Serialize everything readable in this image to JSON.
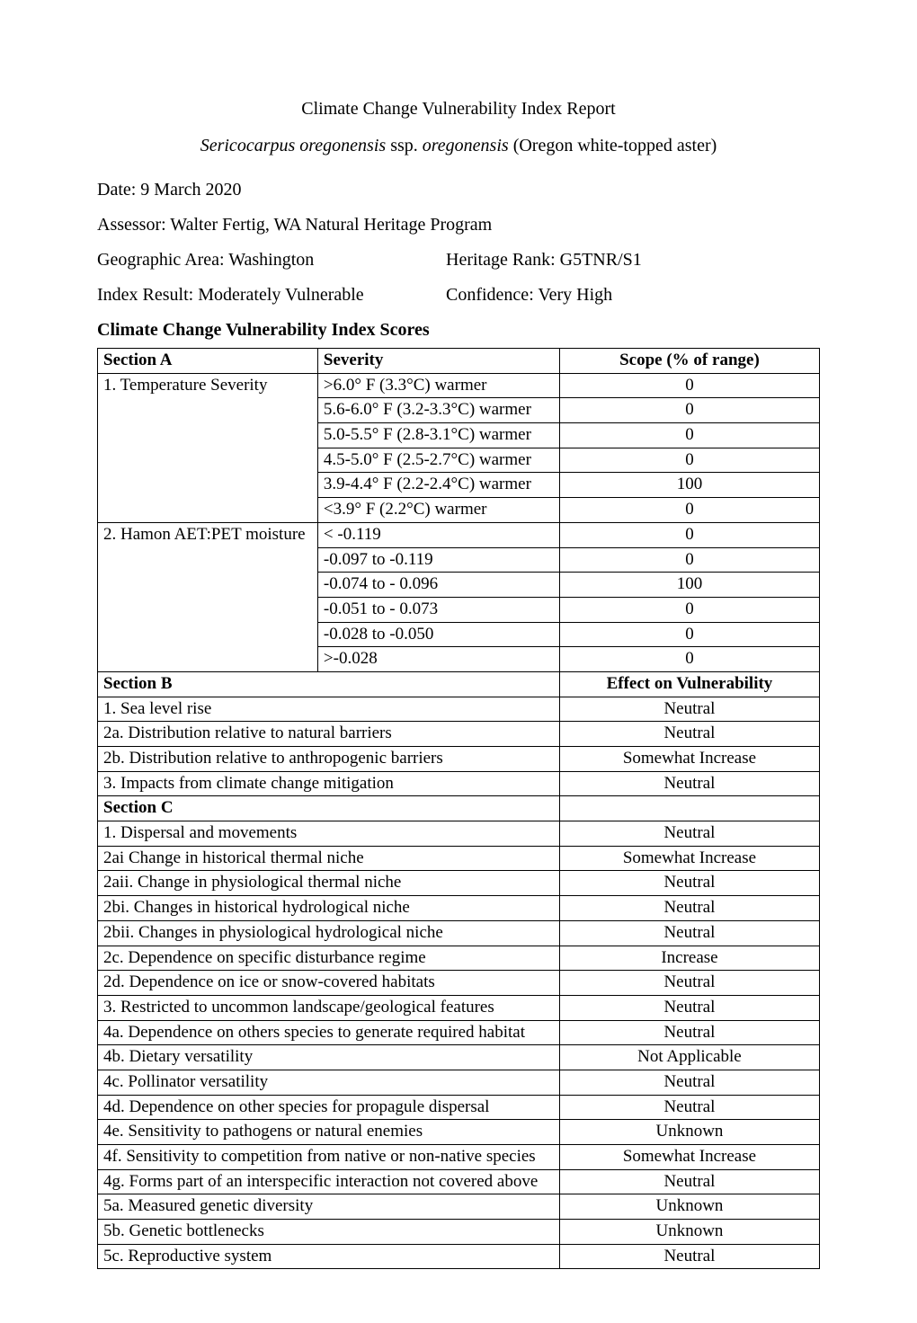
{
  "title": "Climate Change Vulnerability Index Report",
  "species_italic": "Sericocarpus oregonensis",
  "ssp_label": " ssp. ",
  "ssp_italic": "oregonensis",
  "common_name": " (Oregon white-topped aster)",
  "date": "Date: 9 March 2020",
  "assessor": "Assessor: Walter Fertig, WA Natural Heritage Program",
  "geo_area": "Geographic Area:  Washington",
  "heritage_rank": "Heritage Rank: G5TNR/S1",
  "index_result": "Index Result:  Moderately Vulnerable",
  "confidence": "Confidence: Very High",
  "scores_heading": "Climate Change Vulnerability Index Scores",
  "section_a": {
    "header": {
      "c1": "Section A",
      "c2": "Severity",
      "c3": "Scope (% of range)"
    },
    "rows": [
      {
        "factor": "1. Temperature Severity",
        "severity": ">6.0° F (3.3°C) warmer",
        "scope": "0",
        "first": true,
        "span": 6
      },
      {
        "factor": "",
        "severity": "5.6-6.0° F (3.2-3.3°C) warmer",
        "scope": "0"
      },
      {
        "factor": "",
        "severity": "5.0-5.5° F (2.8-3.1°C) warmer",
        "scope": "0"
      },
      {
        "factor": "",
        "severity": "4.5-5.0° F (2.5-2.7°C) warmer",
        "scope": "0"
      },
      {
        "factor": "",
        "severity": "3.9-4.4° F (2.2-2.4°C) warmer",
        "scope": "100"
      },
      {
        "factor": "",
        "severity": "<3.9° F (2.2°C) warmer",
        "scope": "0"
      },
      {
        "factor": "2. Hamon AET:PET moisture",
        "severity": "< -0.119",
        "scope": "0",
        "first": true,
        "span": 6
      },
      {
        "factor": "",
        "severity": "-0.097 to -0.119",
        "scope": "0"
      },
      {
        "factor": "",
        "severity": "-0.074 to - 0.096",
        "scope": "100"
      },
      {
        "factor": "",
        "severity": "-0.051 to - 0.073",
        "scope": "0"
      },
      {
        "factor": "",
        "severity": "-0.028 to -0.050",
        "scope": "0"
      },
      {
        "factor": "",
        "severity": ">-0.028",
        "scope": "0"
      }
    ]
  },
  "section_b": {
    "header": {
      "c1": "Section B",
      "c2": "Effect on Vulnerability"
    },
    "rows": [
      {
        "factor": "1.  Sea level rise",
        "effect": "Neutral"
      },
      {
        "factor": "2a. Distribution relative to natural barriers",
        "effect": "Neutral"
      },
      {
        "factor": "2b. Distribution relative to anthropogenic barriers",
        "effect": "Somewhat Increase"
      },
      {
        "factor": "3. Impacts from climate change mitigation",
        "effect": "Neutral"
      }
    ]
  },
  "section_c": {
    "header": {
      "c1": "Section C",
      "c2": ""
    },
    "rows": [
      {
        "factor": "1. Dispersal and movements",
        "effect": "Neutral"
      },
      {
        "factor": "2ai Change in historical thermal niche",
        "effect": "Somewhat Increase"
      },
      {
        "factor": "2aii. Change in physiological thermal niche",
        "effect": "Neutral"
      },
      {
        "factor": "2bi. Changes in historical hydrological niche",
        "effect": "Neutral"
      },
      {
        "factor": "2bii.  Changes in physiological hydrological niche",
        "effect": "Neutral"
      },
      {
        "factor": "2c. Dependence on specific disturbance regime",
        "effect": "Increase"
      },
      {
        "factor": "2d. Dependence on ice or snow-covered habitats",
        "effect": "Neutral"
      },
      {
        "factor": "3. Restricted to uncommon landscape/geological features",
        "effect": "Neutral"
      },
      {
        "factor": "4a. Dependence on others species to generate required habitat",
        "effect": "Neutral"
      },
      {
        "factor": "4b. Dietary versatility",
        "effect": "Not Applicable"
      },
      {
        "factor": "4c. Pollinator versatility",
        "effect": "Neutral"
      },
      {
        "factor": "4d. Dependence on other species for propagule dispersal",
        "effect": "Neutral"
      },
      {
        "factor": "4e. Sensitivity to pathogens or natural enemies",
        "effect": "Unknown"
      },
      {
        "factor": "4f. Sensitivity to competition from native or non-native species",
        "effect": "Somewhat Increase"
      },
      {
        "factor": "4g. Forms part of an interspecific interaction not covered above",
        "effect": "Neutral"
      },
      {
        "factor": "5a. Measured genetic diversity",
        "effect": "Unknown"
      },
      {
        "factor": "5b. Genetic bottlenecks",
        "effect": "Unknown"
      },
      {
        "factor": "5c. Reproductive system",
        "effect": "Neutral"
      }
    ]
  }
}
